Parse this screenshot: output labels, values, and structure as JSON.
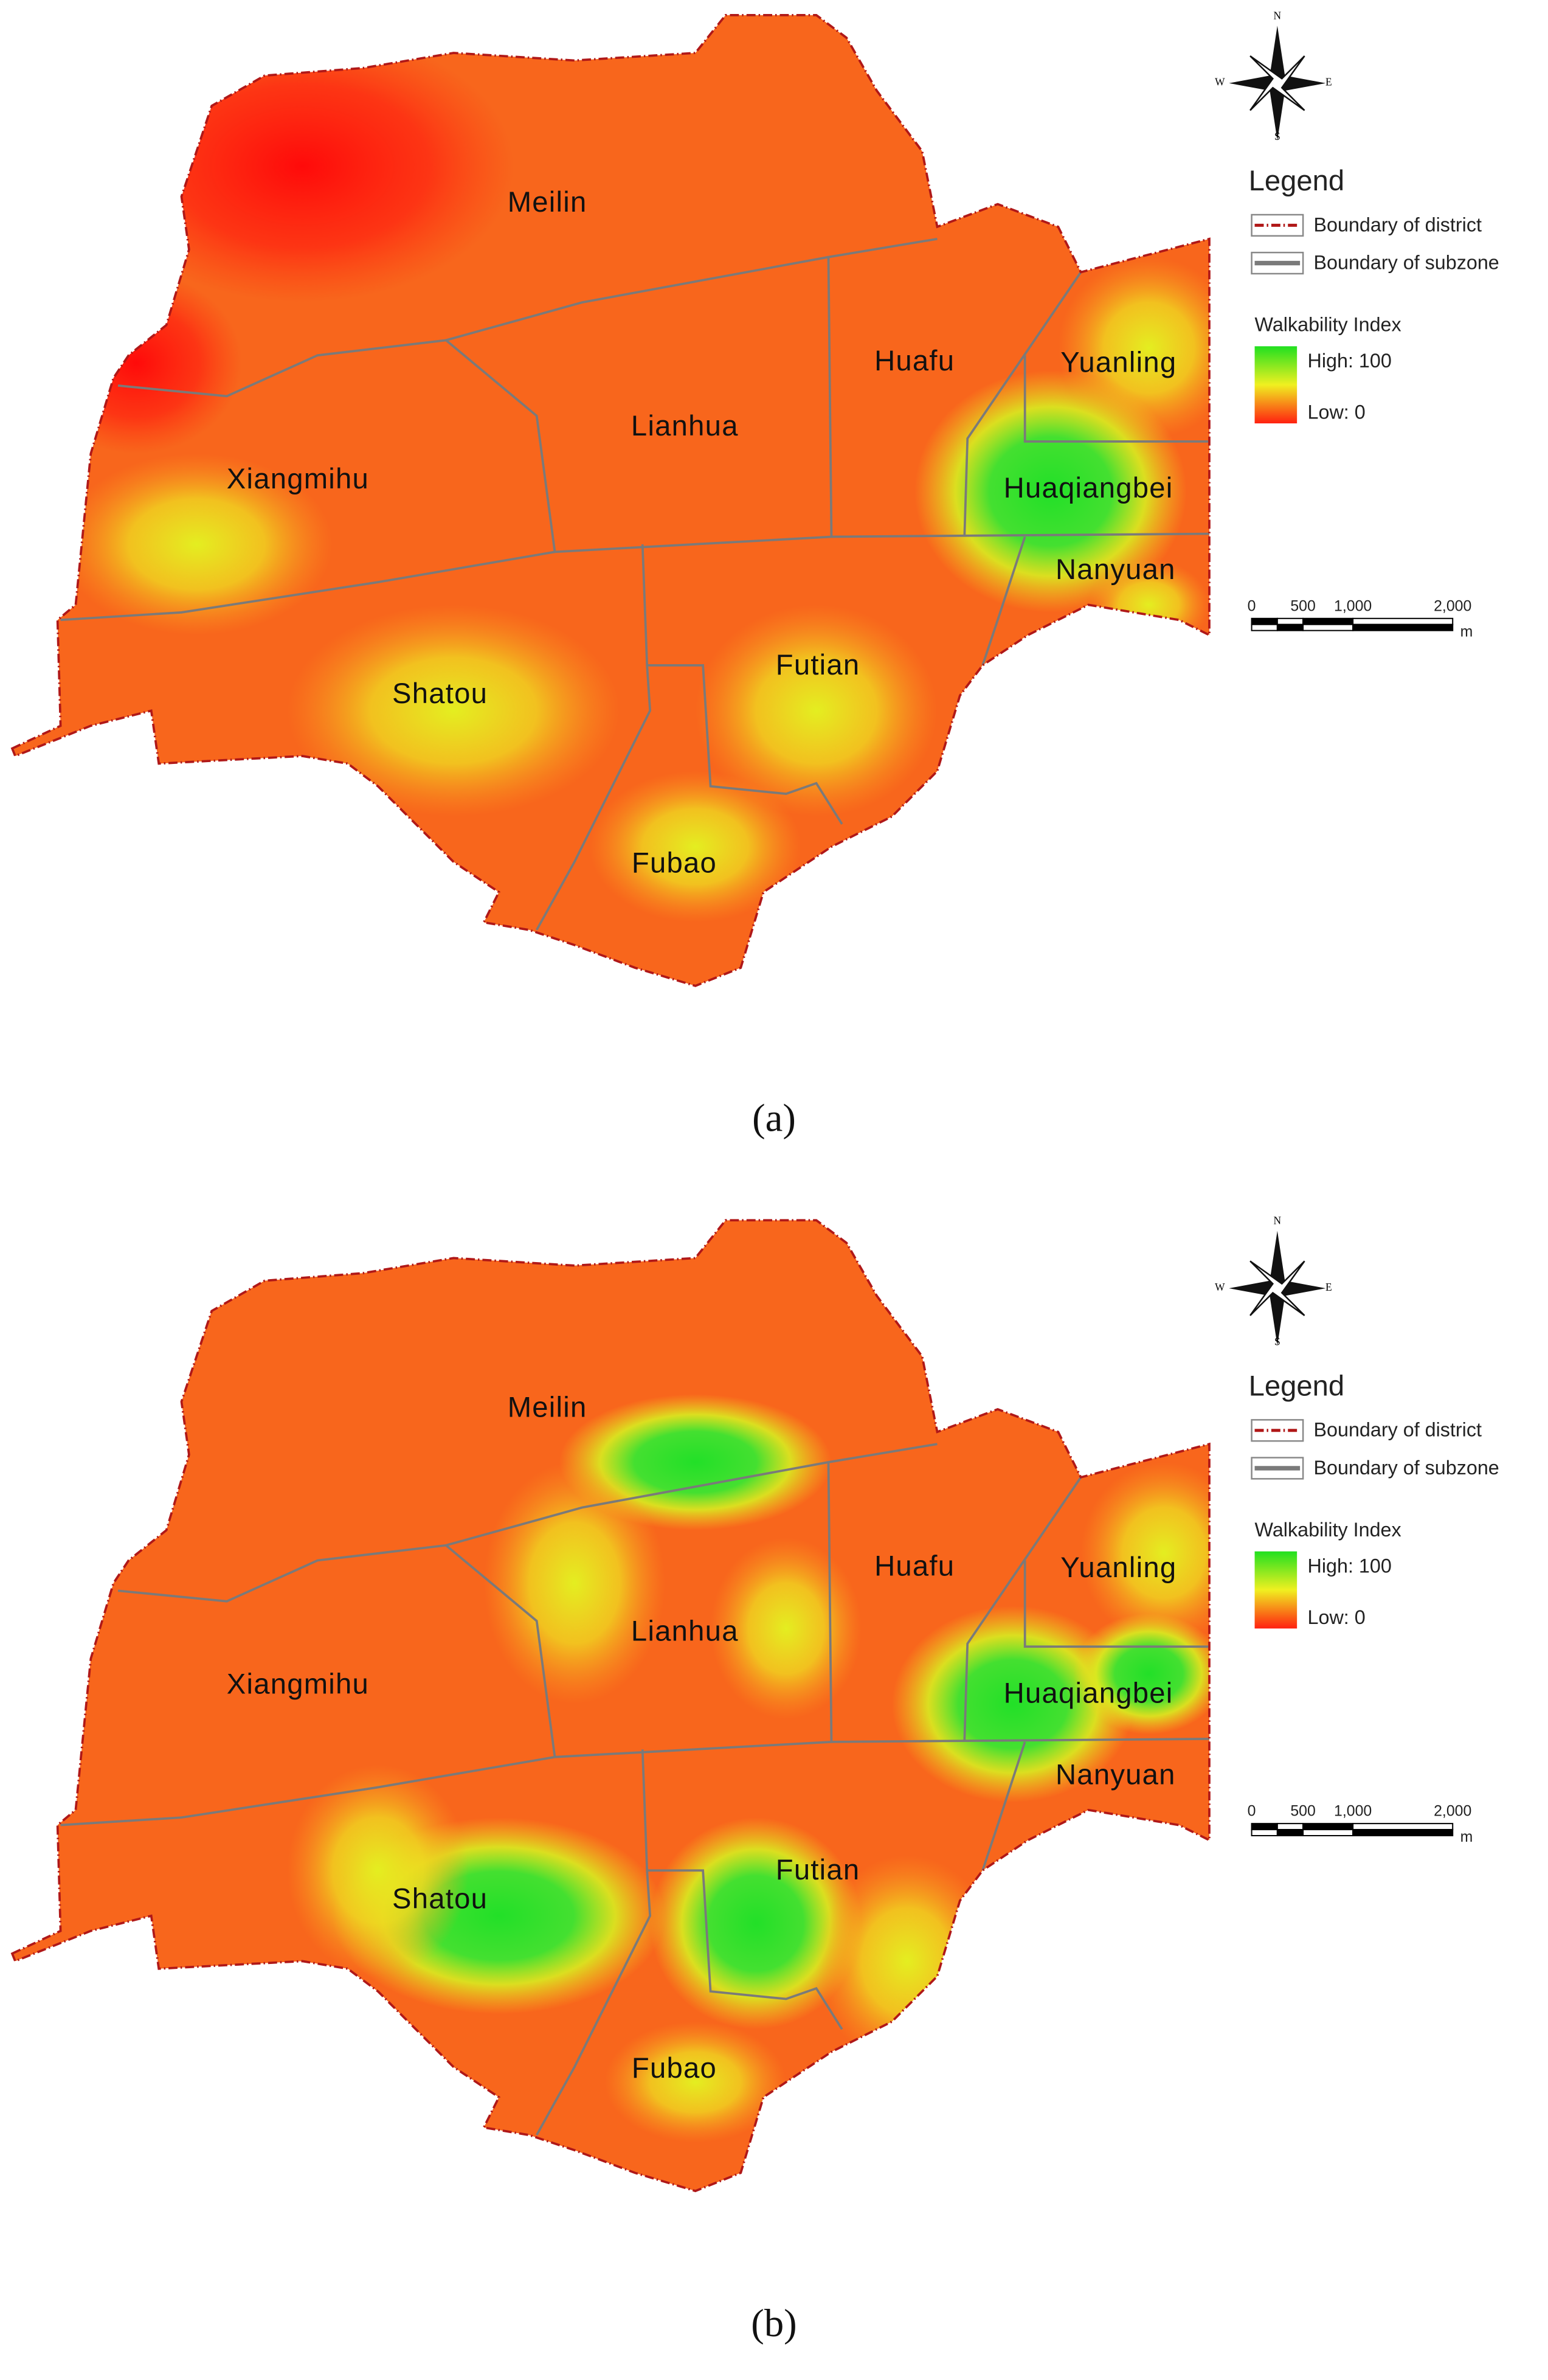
{
  "maps": [
    {
      "caption": "(a)",
      "subzones": [
        "Meilin",
        "Lianhua",
        "Huafu",
        "Yuanling",
        "Xiangmihu",
        "Huaqiangbei",
        "Nanyuan",
        "Futian",
        "Shatou",
        "Fubao"
      ],
      "compass": {
        "north": "N",
        "south": "S",
        "east": "E",
        "west": "W"
      },
      "legend": {
        "title": "Legend",
        "district": "Boundary of district",
        "subzone": "Boundary of subzone",
        "index_title": "Walkability Index",
        "high": "High: 100",
        "low": "Low: 0"
      },
      "scale": {
        "labels": [
          "0",
          "500",
          "1,000",
          "2,000"
        ],
        "unit": "m"
      }
    },
    {
      "caption": "(b)",
      "subzones": [
        "Meilin",
        "Lianhua",
        "Huafu",
        "Yuanling",
        "Xiangmihu",
        "Huaqiangbei",
        "Nanyuan",
        "Futian",
        "Shatou",
        "Fubao"
      ],
      "compass": {
        "north": "N",
        "south": "S",
        "east": "E",
        "west": "W"
      },
      "legend": {
        "title": "Legend",
        "district": "Boundary of district",
        "subzone": "Boundary of subzone",
        "index_title": "Walkability Index",
        "high": "High: 100",
        "low": "Low: 0"
      },
      "scale": {
        "labels": [
          "0",
          "500",
          "1,000",
          "2,000"
        ],
        "unit": "m"
      }
    }
  ]
}
